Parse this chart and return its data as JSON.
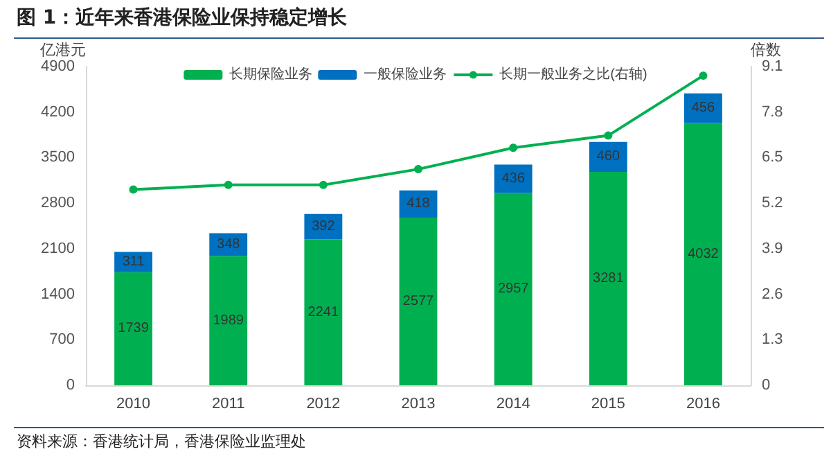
{
  "chart_data": {
    "type": "bar",
    "title": "图 1：近年来香港保险业保持稳定增长",
    "ylabel": "亿港元",
    "y2label": "倍数",
    "categories": [
      "2010",
      "2011",
      "2012",
      "2013",
      "2014",
      "2015",
      "2016"
    ],
    "series": [
      {
        "name": "长期保险业务",
        "color": "#00b050",
        "values": [
          1739,
          1989,
          2241,
          2577,
          2957,
          3281,
          4032
        ],
        "value_labels": [
          "1739",
          "1989",
          "2241",
          "2577",
          "2957",
          "3281",
          "4032"
        ]
      },
      {
        "name": "一般保险业务",
        "color": "#0070c0",
        "values": [
          311,
          348,
          392,
          418,
          436,
          460,
          456
        ],
        "value_labels": [
          "311",
          "348",
          "392",
          "418",
          "436",
          "460",
          "456"
        ]
      },
      {
        "name": "长期一般业务之比(右轴)",
        "type": "line",
        "axis": "y2",
        "color": "#00b050",
        "values": [
          5.59,
          5.72,
          5.72,
          6.17,
          6.78,
          7.13,
          8.84
        ],
        "marker": "circle"
      }
    ],
    "stacked": true,
    "ylim": [
      0,
      4900
    ],
    "yticks": [
      0,
      700,
      1400,
      2100,
      2800,
      3500,
      4200,
      4900
    ],
    "y2lim": [
      0,
      9.1
    ],
    "y2ticks": [
      0,
      1.3,
      2.6,
      3.9,
      5.2,
      6.5,
      7.8,
      9.1
    ],
    "legend": "top",
    "grid": false,
    "annotations": [
      "资料来源：香港统计局，香港保险业监理处"
    ]
  }
}
